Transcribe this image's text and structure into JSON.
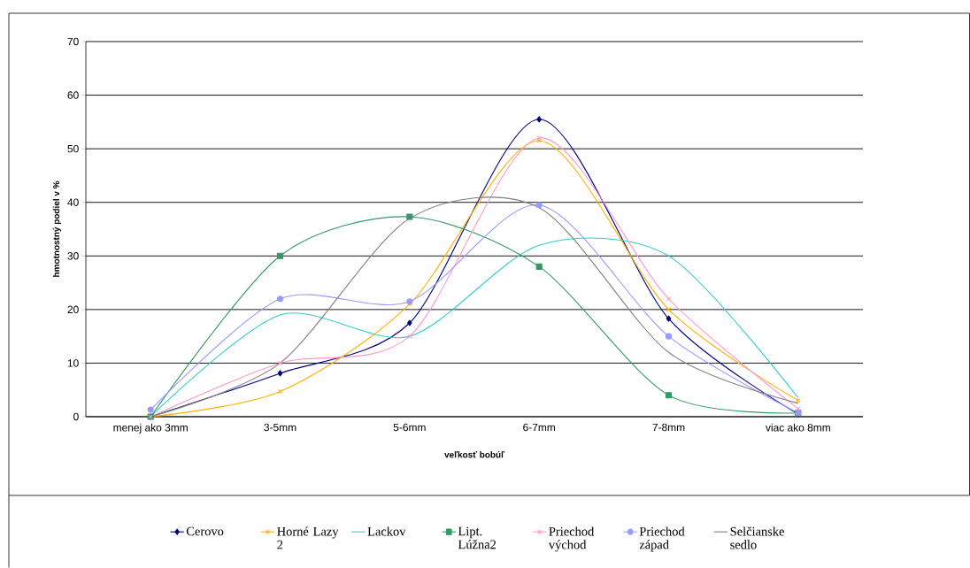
{
  "chart_data": {
    "type": "line",
    "xlabel": "veľkosť bobúľ",
    "ylabel": "hmotnostný podiel v %",
    "categories": [
      "menej ako 3mm",
      "3-5mm",
      "5-6mm",
      "6-7mm",
      "7-8mm",
      "viac ako 8mm"
    ],
    "ylim": [
      0,
      70
    ],
    "yticks": [
      0,
      10,
      20,
      30,
      40,
      50,
      60,
      70
    ],
    "grid": "y",
    "legend": "bottom",
    "line_style": "solid",
    "series": [
      {
        "name": "Cerovo",
        "color": "#000080",
        "marker": "diamond",
        "values": [
          0,
          8.1,
          17.5,
          55.5,
          18.3,
          0.5
        ]
      },
      {
        "name": "Horné Lazy 2",
        "color": "#ffb000",
        "marker": "cross",
        "values": [
          0,
          4.7,
          21,
          51.5,
          20,
          3
        ]
      },
      {
        "name": "Lackov",
        "color": "#33cccc",
        "marker": "none",
        "values": [
          0,
          19,
          15,
          32,
          30,
          3.5
        ]
      },
      {
        "name": "Lipt. Lúžna2",
        "color": "#339966",
        "marker": "square",
        "values": [
          0,
          30,
          37.3,
          28,
          4,
          0.7
        ]
      },
      {
        "name": "Priechod východ",
        "color": "#ff99cc",
        "marker": "cross",
        "values": [
          0,
          10,
          15,
          52,
          22,
          1.5
        ]
      },
      {
        "name": "Priechod západ",
        "color": "#9999ff",
        "marker": "circle",
        "values": [
          1.3,
          22,
          21.5,
          39.5,
          15,
          0.7
        ]
      },
      {
        "name": "Selčianske sedlo",
        "color": "#808080",
        "marker": "none",
        "values": [
          0,
          10,
          37,
          39,
          12,
          2.5
        ]
      }
    ]
  }
}
